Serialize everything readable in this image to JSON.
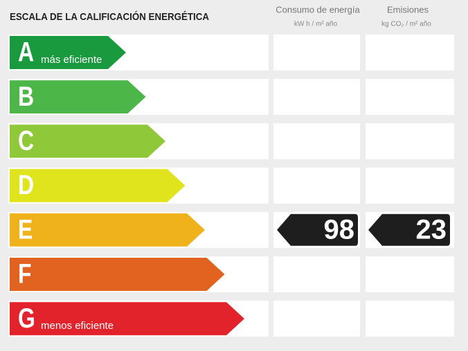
{
  "header": {
    "title": "ESCALA DE LA CALIFICACIÓN ENERGÉTICA"
  },
  "columns": [
    {
      "title": "Consumo de energía",
      "unit": "kW h / m² año"
    },
    {
      "title": "Emisiones",
      "unit": "kg CO₂ / m² año"
    }
  ],
  "rows": [
    {
      "letter": "A",
      "note": "más eficiente",
      "color": "#1a9a3e"
    },
    {
      "letter": "B",
      "color": "#4cb748"
    },
    {
      "letter": "C",
      "color": "#8fc93a"
    },
    {
      "letter": "D",
      "color": "#e0e41c"
    },
    {
      "letter": "E",
      "color": "#f0b21a",
      "energy": 98,
      "emissions": 23
    },
    {
      "letter": "F",
      "color": "#e2621f"
    },
    {
      "letter": "G",
      "note": "menos eficiente",
      "color": "#e3232c"
    }
  ]
}
